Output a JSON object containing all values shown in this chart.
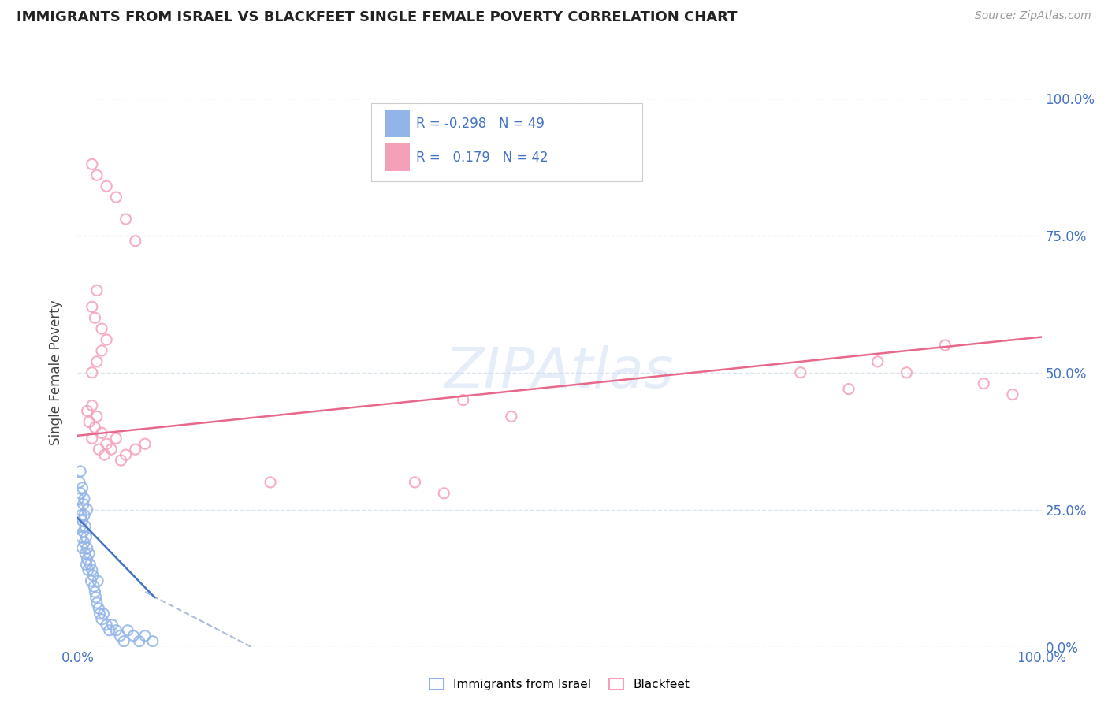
{
  "title": "IMMIGRANTS FROM ISRAEL VS BLACKFEET SINGLE FEMALE POVERTY CORRELATION CHART",
  "source": "Source: ZipAtlas.com",
  "ylabel": "Single Female Poverty",
  "ytick_labels": [
    "0.0%",
    "25.0%",
    "50.0%",
    "75.0%",
    "100.0%"
  ],
  "ytick_positions": [
    0.0,
    0.25,
    0.5,
    0.75,
    1.0
  ],
  "legend_israel_R": "-0.298",
  "legend_israel_N": "49",
  "legend_blackfeet_R": "0.179",
  "legend_blackfeet_N": "42",
  "israel_color": "#92b4e8",
  "blackfeet_color": "#f4a0b8",
  "israel_line_color": "#4472c4",
  "blackfeet_line_color": "#e8688a",
  "dashed_line_color": "#aabcd8",
  "grid_color": "#d8e4f0",
  "title_color": "#222222",
  "source_color": "#999999",
  "axis_label_color": "#4472c4",
  "legend_R_color": "#4472c4",
  "background_color": "#ffffff",
  "israel_scatter_x": [
    0.001,
    0.002,
    0.002,
    0.003,
    0.003,
    0.004,
    0.004,
    0.005,
    0.005,
    0.006,
    0.006,
    0.007,
    0.007,
    0.008,
    0.008,
    0.009,
    0.009,
    0.01,
    0.01,
    0.011,
    0.012,
    0.013,
    0.014,
    0.015,
    0.016,
    0.017,
    0.018,
    0.019,
    0.02,
    0.021,
    0.022,
    0.023,
    0.025,
    0.027,
    0.03,
    0.033,
    0.036,
    0.04,
    0.044,
    0.048,
    0.052,
    0.058,
    0.064,
    0.07,
    0.078,
    0.003,
    0.005,
    0.007,
    0.01
  ],
  "israel_scatter_y": [
    0.27,
    0.25,
    0.3,
    0.22,
    0.28,
    0.24,
    0.2,
    0.23,
    0.18,
    0.26,
    0.21,
    0.19,
    0.24,
    0.17,
    0.22,
    0.2,
    0.15,
    0.18,
    0.16,
    0.14,
    0.17,
    0.15,
    0.12,
    0.14,
    0.13,
    0.11,
    0.1,
    0.09,
    0.08,
    0.12,
    0.07,
    0.06,
    0.05,
    0.06,
    0.04,
    0.03,
    0.04,
    0.03,
    0.02,
    0.01,
    0.03,
    0.02,
    0.01,
    0.02,
    0.01,
    0.32,
    0.29,
    0.27,
    0.25
  ],
  "blackfeet_scatter_x": [
    0.01,
    0.012,
    0.015,
    0.015,
    0.018,
    0.02,
    0.022,
    0.025,
    0.028,
    0.03,
    0.035,
    0.04,
    0.045,
    0.05,
    0.06,
    0.07,
    0.015,
    0.018,
    0.02,
    0.025,
    0.015,
    0.02,
    0.025,
    0.03,
    0.2,
    0.35,
    0.38,
    0.75,
    0.8,
    0.83,
    0.86,
    0.9,
    0.94,
    0.97,
    0.4,
    0.45,
    0.015,
    0.02,
    0.03,
    0.04,
    0.05,
    0.06
  ],
  "blackfeet_scatter_y": [
    0.43,
    0.41,
    0.44,
    0.38,
    0.4,
    0.42,
    0.36,
    0.39,
    0.35,
    0.37,
    0.36,
    0.38,
    0.34,
    0.35,
    0.36,
    0.37,
    0.62,
    0.6,
    0.65,
    0.58,
    0.5,
    0.52,
    0.54,
    0.56,
    0.3,
    0.3,
    0.28,
    0.5,
    0.47,
    0.52,
    0.5,
    0.55,
    0.48,
    0.46,
    0.45,
    0.42,
    0.88,
    0.86,
    0.84,
    0.82,
    0.78,
    0.74
  ],
  "israel_trend_x": [
    0.0,
    0.08
  ],
  "israel_trend_y": [
    0.235,
    0.09
  ],
  "blackfeet_trend_x": [
    0.0,
    1.0
  ],
  "blackfeet_trend_y": [
    0.385,
    0.565
  ],
  "dashed_trend_x": [
    0.07,
    0.18
  ],
  "dashed_trend_y": [
    0.1,
    0.0
  ],
  "xlim": [
    0.0,
    1.0
  ],
  "ylim": [
    0.0,
    1.0
  ]
}
